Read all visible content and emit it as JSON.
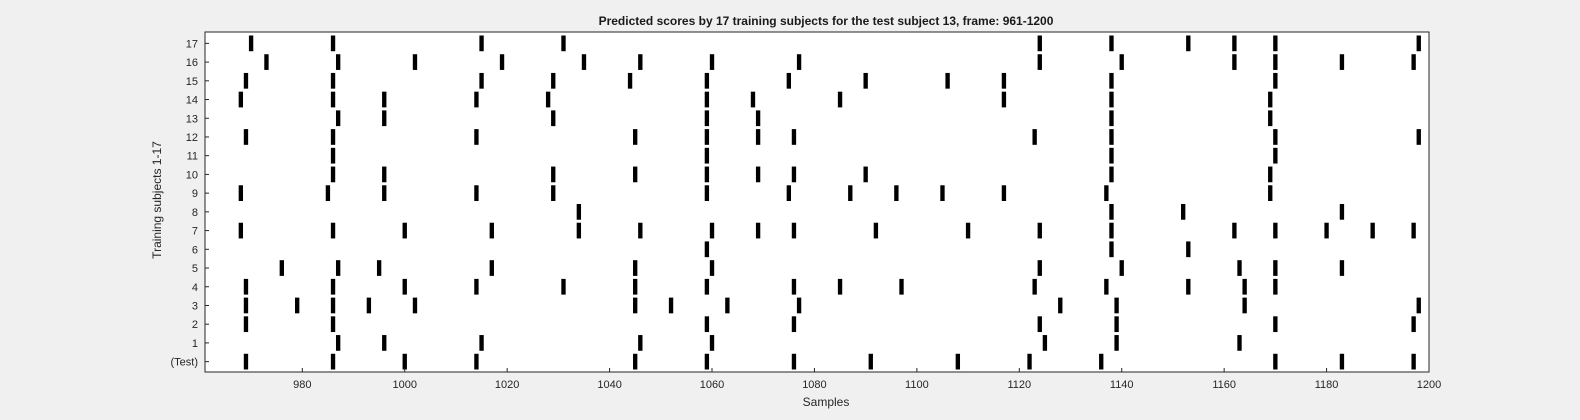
{
  "chart_data": {
    "type": "heatmap",
    "title": "Predicted scores by 17 training subjects for the test subject 13, frame: 961-1200",
    "xlabel": "Samples",
    "ylabel": "Training subjects 1-17",
    "xlim": [
      961,
      1200
    ],
    "xticks": [
      980,
      1000,
      1020,
      1040,
      1060,
      1080,
      1100,
      1120,
      1140,
      1160,
      1180,
      1200
    ],
    "rows": [
      {
        "label": "(Test)",
        "x": [
          969,
          986,
          1000,
          1014,
          1045,
          1059,
          1076,
          1091,
          1108,
          1122,
          1136,
          1170,
          1183,
          1197
        ]
      },
      {
        "label": "1",
        "x": [
          987,
          996,
          1015,
          1046,
          1060,
          1125,
          1139,
          1163
        ]
      },
      {
        "label": "2",
        "x": [
          969,
          986,
          1059,
          1076,
          1124,
          1139,
          1170,
          1197
        ]
      },
      {
        "label": "3",
        "x": [
          969,
          979,
          986,
          993,
          1002,
          1045,
          1052,
          1063,
          1077,
          1128,
          1139,
          1164,
          1198
        ]
      },
      {
        "label": "4",
        "x": [
          969,
          986,
          1000,
          1014,
          1031,
          1045,
          1059,
          1076,
          1085,
          1097,
          1123,
          1137,
          1153,
          1164,
          1170
        ]
      },
      {
        "label": "5",
        "x": [
          976,
          987,
          995,
          1017,
          1045,
          1060,
          1124,
          1140,
          1163,
          1170,
          1183
        ]
      },
      {
        "label": "6",
        "x": [
          1059,
          1138,
          1153
        ]
      },
      {
        "label": "7",
        "x": [
          968,
          986,
          1000,
          1017,
          1034,
          1046,
          1060,
          1069,
          1076,
          1092,
          1110,
          1124,
          1138,
          1162,
          1170,
          1180,
          1189,
          1197
        ]
      },
      {
        "label": "8",
        "x": [
          1034,
          1138,
          1152,
          1183
        ]
      },
      {
        "label": "9",
        "x": [
          968,
          985,
          996,
          1014,
          1029,
          1059,
          1075,
          1087,
          1096,
          1105,
          1117,
          1137,
          1169
        ]
      },
      {
        "label": "10",
        "x": [
          986,
          996,
          1029,
          1045,
          1059,
          1069,
          1076,
          1090,
          1138,
          1169
        ]
      },
      {
        "label": "11",
        "x": [
          986,
          1059,
          1138,
          1170
        ]
      },
      {
        "label": "12",
        "x": [
          969,
          986,
          1014,
          1045,
          1059,
          1069,
          1076,
          1123,
          1138,
          1170,
          1198
        ]
      },
      {
        "label": "13",
        "x": [
          987,
          996,
          1029,
          1059,
          1069,
          1138,
          1169
        ]
      },
      {
        "label": "14",
        "x": [
          968,
          986,
          996,
          1014,
          1028,
          1059,
          1068,
          1085,
          1117,
          1138,
          1169
        ]
      },
      {
        "label": "15",
        "x": [
          969,
          986,
          1015,
          1029,
          1044,
          1059,
          1075,
          1090,
          1106,
          1117,
          1138,
          1170
        ]
      },
      {
        "label": "16",
        "x": [
          973,
          987,
          1002,
          1019,
          1035,
          1046,
          1060,
          1077,
          1124,
          1140,
          1162,
          1170,
          1183,
          1197
        ]
      },
      {
        "label": "17",
        "x": [
          970,
          986,
          1015,
          1031,
          1124,
          1138,
          1153,
          1162,
          1170,
          1198
        ]
      }
    ]
  }
}
